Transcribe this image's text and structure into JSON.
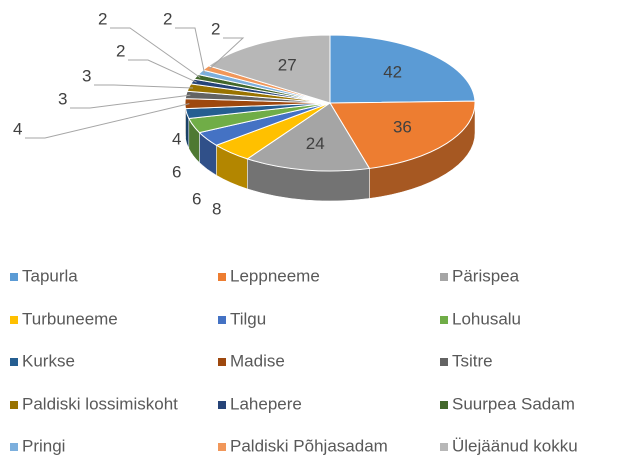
{
  "chart_data": {
    "type": "pie3d",
    "categories": [
      "Tapurla",
      "Leppneeme",
      "Pärispea",
      "Turbuneeme",
      "Tilgu",
      "Lohusalu",
      "Kurkse",
      "Madise",
      "Tsitre",
      "Paldiski lossimiskoht",
      "Lahepere",
      "Suurpea Sadam",
      "Pringi",
      "Paldiski Põhjasadam",
      "Ülejäänud kokku"
    ],
    "values": [
      42,
      36,
      24,
      8,
      6,
      6,
      4,
      4,
      3,
      3,
      2,
      2,
      2,
      2,
      27
    ],
    "colors": [
      "#5b9bd5",
      "#ed7d31",
      "#a5a5a5",
      "#ffc000",
      "#4472c4",
      "#70ad47",
      "#255e91",
      "#9e480e",
      "#636363",
      "#997300",
      "#264478",
      "#43682b",
      "#7cafdd",
      "#f1975a",
      "#b7b7b7"
    ],
    "legend": "bottom"
  }
}
